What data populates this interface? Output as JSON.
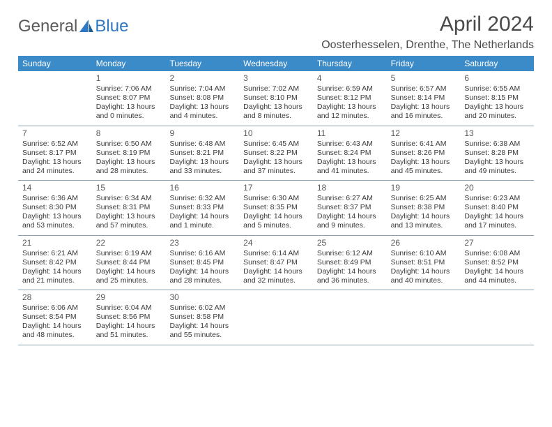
{
  "brand": {
    "general": "General",
    "blue": "Blue"
  },
  "title": "April 2024",
  "location": "Oosterhesselen, Drenthe, The Netherlands",
  "colors": {
    "header_bg": "#3b8bc9",
    "header_text": "#ffffff",
    "body_text": "#3a3a3a",
    "border": "#8aa0b0",
    "logo_gray": "#5a5a5a",
    "logo_blue": "#2f78c3",
    "background": "#ffffff"
  },
  "fonts": {
    "title_size_pt": 30,
    "location_size_pt": 16,
    "dayhead_size_pt": 12,
    "cell_size_pt": 10.5,
    "logo_size_pt": 24
  },
  "day_headers": [
    "Sunday",
    "Monday",
    "Tuesday",
    "Wednesday",
    "Thursday",
    "Friday",
    "Saturday"
  ],
  "weeks": [
    [
      null,
      {
        "n": "1",
        "sr": "Sunrise: 7:06 AM",
        "ss": "Sunset: 8:07 PM",
        "d1": "Daylight: 13 hours",
        "d2": "and 0 minutes."
      },
      {
        "n": "2",
        "sr": "Sunrise: 7:04 AM",
        "ss": "Sunset: 8:08 PM",
        "d1": "Daylight: 13 hours",
        "d2": "and 4 minutes."
      },
      {
        "n": "3",
        "sr": "Sunrise: 7:02 AM",
        "ss": "Sunset: 8:10 PM",
        "d1": "Daylight: 13 hours",
        "d2": "and 8 minutes."
      },
      {
        "n": "4",
        "sr": "Sunrise: 6:59 AM",
        "ss": "Sunset: 8:12 PM",
        "d1": "Daylight: 13 hours",
        "d2": "and 12 minutes."
      },
      {
        "n": "5",
        "sr": "Sunrise: 6:57 AM",
        "ss": "Sunset: 8:14 PM",
        "d1": "Daylight: 13 hours",
        "d2": "and 16 minutes."
      },
      {
        "n": "6",
        "sr": "Sunrise: 6:55 AM",
        "ss": "Sunset: 8:15 PM",
        "d1": "Daylight: 13 hours",
        "d2": "and 20 minutes."
      }
    ],
    [
      {
        "n": "7",
        "sr": "Sunrise: 6:52 AM",
        "ss": "Sunset: 8:17 PM",
        "d1": "Daylight: 13 hours",
        "d2": "and 24 minutes."
      },
      {
        "n": "8",
        "sr": "Sunrise: 6:50 AM",
        "ss": "Sunset: 8:19 PM",
        "d1": "Daylight: 13 hours",
        "d2": "and 28 minutes."
      },
      {
        "n": "9",
        "sr": "Sunrise: 6:48 AM",
        "ss": "Sunset: 8:21 PM",
        "d1": "Daylight: 13 hours",
        "d2": "and 33 minutes."
      },
      {
        "n": "10",
        "sr": "Sunrise: 6:45 AM",
        "ss": "Sunset: 8:22 PM",
        "d1": "Daylight: 13 hours",
        "d2": "and 37 minutes."
      },
      {
        "n": "11",
        "sr": "Sunrise: 6:43 AM",
        "ss": "Sunset: 8:24 PM",
        "d1": "Daylight: 13 hours",
        "d2": "and 41 minutes."
      },
      {
        "n": "12",
        "sr": "Sunrise: 6:41 AM",
        "ss": "Sunset: 8:26 PM",
        "d1": "Daylight: 13 hours",
        "d2": "and 45 minutes."
      },
      {
        "n": "13",
        "sr": "Sunrise: 6:38 AM",
        "ss": "Sunset: 8:28 PM",
        "d1": "Daylight: 13 hours",
        "d2": "and 49 minutes."
      }
    ],
    [
      {
        "n": "14",
        "sr": "Sunrise: 6:36 AM",
        "ss": "Sunset: 8:30 PM",
        "d1": "Daylight: 13 hours",
        "d2": "and 53 minutes."
      },
      {
        "n": "15",
        "sr": "Sunrise: 6:34 AM",
        "ss": "Sunset: 8:31 PM",
        "d1": "Daylight: 13 hours",
        "d2": "and 57 minutes."
      },
      {
        "n": "16",
        "sr": "Sunrise: 6:32 AM",
        "ss": "Sunset: 8:33 PM",
        "d1": "Daylight: 14 hours",
        "d2": "and 1 minute."
      },
      {
        "n": "17",
        "sr": "Sunrise: 6:30 AM",
        "ss": "Sunset: 8:35 PM",
        "d1": "Daylight: 14 hours",
        "d2": "and 5 minutes."
      },
      {
        "n": "18",
        "sr": "Sunrise: 6:27 AM",
        "ss": "Sunset: 8:37 PM",
        "d1": "Daylight: 14 hours",
        "d2": "and 9 minutes."
      },
      {
        "n": "19",
        "sr": "Sunrise: 6:25 AM",
        "ss": "Sunset: 8:38 PM",
        "d1": "Daylight: 14 hours",
        "d2": "and 13 minutes."
      },
      {
        "n": "20",
        "sr": "Sunrise: 6:23 AM",
        "ss": "Sunset: 8:40 PM",
        "d1": "Daylight: 14 hours",
        "d2": "and 17 minutes."
      }
    ],
    [
      {
        "n": "21",
        "sr": "Sunrise: 6:21 AM",
        "ss": "Sunset: 8:42 PM",
        "d1": "Daylight: 14 hours",
        "d2": "and 21 minutes."
      },
      {
        "n": "22",
        "sr": "Sunrise: 6:19 AM",
        "ss": "Sunset: 8:44 PM",
        "d1": "Daylight: 14 hours",
        "d2": "and 25 minutes."
      },
      {
        "n": "23",
        "sr": "Sunrise: 6:16 AM",
        "ss": "Sunset: 8:45 PM",
        "d1": "Daylight: 14 hours",
        "d2": "and 28 minutes."
      },
      {
        "n": "24",
        "sr": "Sunrise: 6:14 AM",
        "ss": "Sunset: 8:47 PM",
        "d1": "Daylight: 14 hours",
        "d2": "and 32 minutes."
      },
      {
        "n": "25",
        "sr": "Sunrise: 6:12 AM",
        "ss": "Sunset: 8:49 PM",
        "d1": "Daylight: 14 hours",
        "d2": "and 36 minutes."
      },
      {
        "n": "26",
        "sr": "Sunrise: 6:10 AM",
        "ss": "Sunset: 8:51 PM",
        "d1": "Daylight: 14 hours",
        "d2": "and 40 minutes."
      },
      {
        "n": "27",
        "sr": "Sunrise: 6:08 AM",
        "ss": "Sunset: 8:52 PM",
        "d1": "Daylight: 14 hours",
        "d2": "and 44 minutes."
      }
    ],
    [
      {
        "n": "28",
        "sr": "Sunrise: 6:06 AM",
        "ss": "Sunset: 8:54 PM",
        "d1": "Daylight: 14 hours",
        "d2": "and 48 minutes."
      },
      {
        "n": "29",
        "sr": "Sunrise: 6:04 AM",
        "ss": "Sunset: 8:56 PM",
        "d1": "Daylight: 14 hours",
        "d2": "and 51 minutes."
      },
      {
        "n": "30",
        "sr": "Sunrise: 6:02 AM",
        "ss": "Sunset: 8:58 PM",
        "d1": "Daylight: 14 hours",
        "d2": "and 55 minutes."
      },
      null,
      null,
      null,
      null
    ]
  ]
}
